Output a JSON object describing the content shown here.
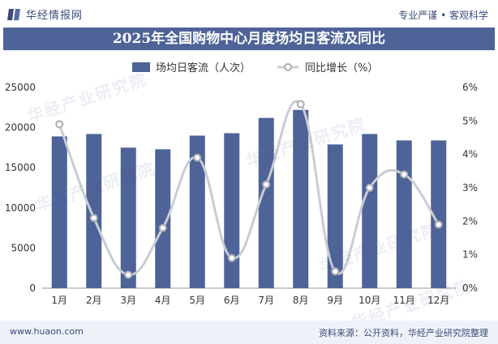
{
  "header": {
    "brand_name": "华经情报网",
    "tagline": "专业严谨 • 客观科学",
    "title": "2025年全国购物中心月度场均日客流及同比"
  },
  "footer": {
    "url": "www.huaon.com",
    "source": "资料来源：公开资料，华经产业研究院整理"
  },
  "watermark": {
    "text": "华经产业研究院",
    "url_text": "www.huaon.com"
  },
  "colors": {
    "title_band": "#4e6397",
    "bar": "#4e6397",
    "line": "#c9cdd3",
    "marker_fill": "#ffffff",
    "marker_stroke": "#a9adb4",
    "axis_text": "#333333"
  },
  "chart_data": {
    "type": "bar",
    "categories": [
      "1月",
      "2月",
      "3月",
      "4月",
      "5月",
      "6月",
      "7月",
      "8月",
      "9月",
      "10月",
      "11月",
      "12月"
    ],
    "series": [
      {
        "name": "场均日客流（人次）",
        "type": "bar",
        "axis": "left",
        "values": [
          18900,
          19200,
          17500,
          17300,
          19000,
          19300,
          21200,
          22200,
          17900,
          19200,
          18400,
          18400
        ]
      },
      {
        "name": "同比增长（%）",
        "type": "line",
        "axis": "right",
        "smooth": true,
        "values": [
          4.9,
          2.1,
          0.4,
          1.8,
          3.9,
          0.9,
          3.1,
          5.5,
          0.5,
          3.0,
          3.4,
          1.9
        ]
      }
    ],
    "y_left": {
      "min": 0,
      "max": 25000,
      "ticks": [
        "0",
        "5000",
        "10000",
        "15000",
        "20000",
        "25000"
      ]
    },
    "y_right": {
      "min": 0,
      "max": 6,
      "ticks": [
        "0%",
        "1%",
        "2%",
        "3%",
        "4%",
        "5%",
        "6%"
      ]
    },
    "legend_position": "top-left",
    "grid": false
  }
}
